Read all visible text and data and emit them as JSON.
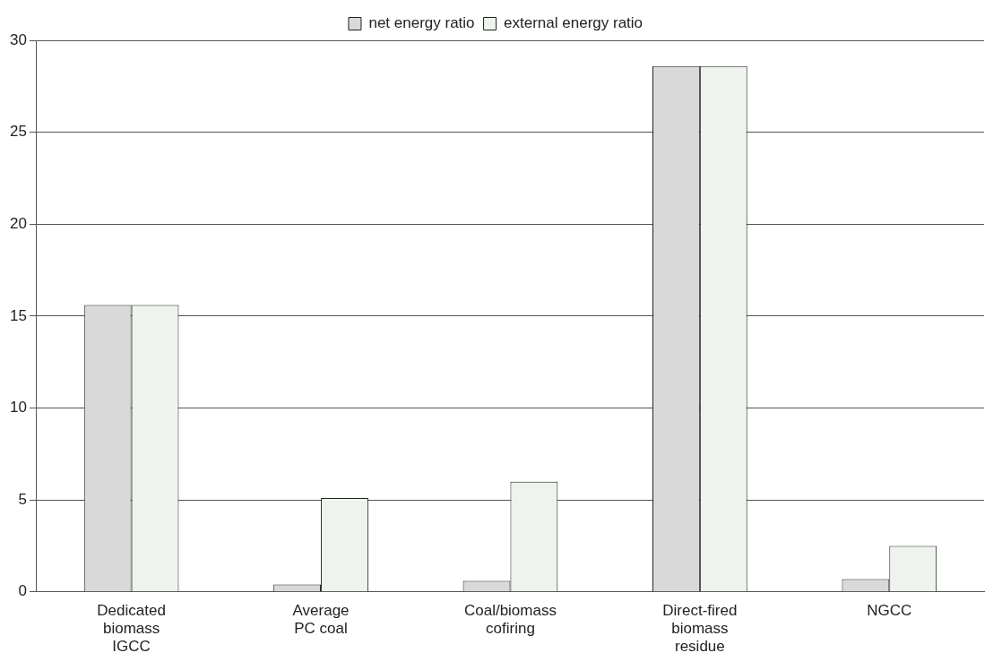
{
  "chart_data": {
    "type": "bar",
    "categories": [
      "Dedicated biomass IGCC",
      "Average PC coal",
      "Coal/biomass cofiring",
      "Direct-fired biomass residue",
      "NGCC"
    ],
    "series": [
      {
        "name": "net energy ratio",
        "color": "#d9d9d9",
        "values": [
          15.6,
          0.4,
          0.6,
          28.6,
          0.7
        ]
      },
      {
        "name": "external energy ratio",
        "color": "#eef3ee",
        "values": [
          15.6,
          5.1,
          6.0,
          28.6,
          2.5
        ]
      }
    ],
    "ylim": [
      0,
      30
    ],
    "yticks": [
      0,
      5,
      10,
      15,
      20,
      25,
      30
    ],
    "grid": "y",
    "legend": "top"
  }
}
